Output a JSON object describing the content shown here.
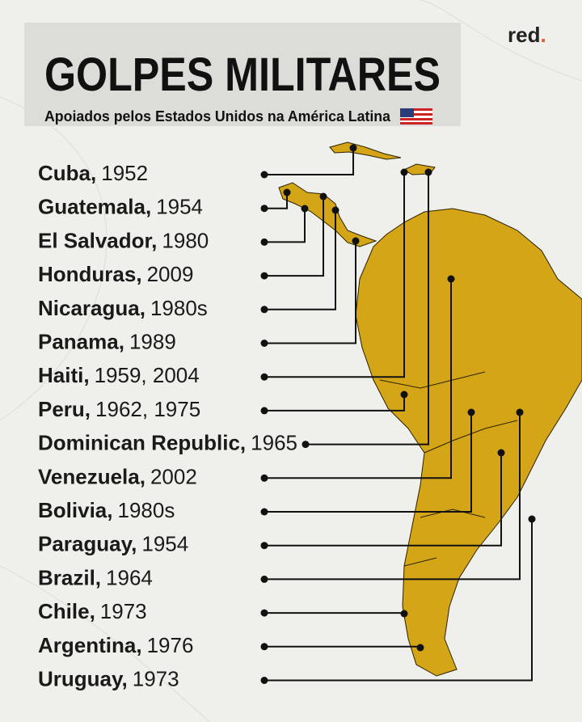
{
  "header": {
    "brand": "red",
    "brand_dot": ".",
    "title": "GOLPES MILITARES",
    "subtitle": "Apoiados pelos Estados Unidos na América Latina"
  },
  "items": [
    {
      "name": "Cuba,",
      "years": "1952"
    },
    {
      "name": "Guatemala,",
      "years": "1954"
    },
    {
      "name": "El Salvador,",
      "years": "1980"
    },
    {
      "name": "Honduras,",
      "years": "2009"
    },
    {
      "name": "Nicaragua,",
      "years": "1980s"
    },
    {
      "name": "Panama,",
      "years": "1989"
    },
    {
      "name": "Haiti,",
      "years": "1959, 2004"
    },
    {
      "name": "Peru,",
      "years": "1962, 1975"
    },
    {
      "name": "Dominican Republic,",
      "years": "1965"
    },
    {
      "name": "Venezuela,",
      "years": "2002"
    },
    {
      "name": "Bolivia,",
      "years": "1980s"
    },
    {
      "name": "Paraguay,",
      "years": "1954"
    },
    {
      "name": "Brazil,",
      "years": "1964"
    },
    {
      "name": "Chile,",
      "years": "1973"
    },
    {
      "name": "Argentina,",
      "years": "1976"
    },
    {
      "name": "Uruguay,",
      "years": "1973"
    }
  ]
}
